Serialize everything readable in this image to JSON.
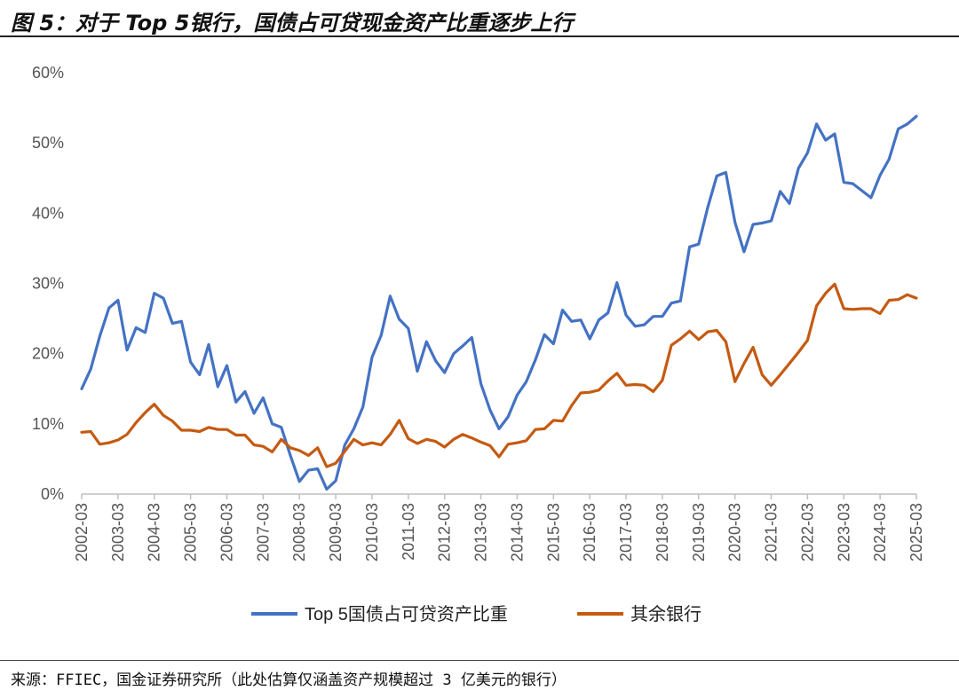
{
  "title": "图 5：对于 Top 5银行，国债占可贷现金资产比重逐步上行",
  "source": "来源：FFIEC，国金证券研究所（此处估算仅涵盖资产规模超过 3 亿美元的银行）",
  "chart_data": {
    "type": "line",
    "title": "",
    "xlabel": "",
    "ylabel": "",
    "ylim": [
      0,
      60
    ],
    "yticks": [
      "0%",
      "10%",
      "20%",
      "30%",
      "40%",
      "50%",
      "60%"
    ],
    "x_start": "2002-03",
    "xticks": [
      "2002-03",
      "2003-03",
      "2004-03",
      "2005-03",
      "2006-03",
      "2007-03",
      "2008-03",
      "2009-03",
      "2010-03",
      "2011-03",
      "2012-03",
      "2013-03",
      "2014-03",
      "2015-03",
      "2016-03",
      "2017-03",
      "2018-03",
      "2019-03",
      "2020-03",
      "2021-03",
      "2022-03",
      "2023-03",
      "2024-03",
      "2025-03"
    ],
    "legend_position": "bottom",
    "grid": false,
    "series": [
      {
        "name": "Top 5国债占可贷资产比重",
        "color": "#4472C4",
        "values": [
          15,
          17.8,
          22.5,
          26.5,
          27.6,
          20.5,
          23.7,
          23,
          28.6,
          27.9,
          24.3,
          24.6,
          18.8,
          17,
          21.3,
          15.3,
          18.3,
          13.1,
          14.6,
          11.5,
          13.7,
          10,
          9.5,
          5.5,
          1.8,
          3.4,
          3.6,
          0.7,
          1.9,
          7,
          9.3,
          12.4,
          19.5,
          22.6,
          28.2,
          24.9,
          23.6,
          17.5,
          21.7,
          19,
          17.3,
          20,
          21.1,
          22.3,
          15.7,
          12,
          9.3,
          11,
          14.1,
          16,
          19.1,
          22.7,
          21.4,
          26.2,
          24.6,
          24.8,
          22.1,
          24.8,
          25.8,
          30.1,
          25.5,
          23.9,
          24.1,
          25.3,
          25.3,
          27.2,
          27.5,
          35.2,
          35.6,
          40.8,
          45.3,
          45.8,
          38.7,
          34.5,
          38.4,
          38.6,
          38.9,
          43.1,
          41.4,
          46.4,
          48.6,
          52.7,
          50.4,
          51.3,
          44.4,
          44.2,
          43.2,
          42.2,
          45.4,
          47.7,
          52,
          52.7,
          53.8
        ]
      },
      {
        "name": "其余银行",
        "color": "#C55A11",
        "values": [
          8.8,
          8.9,
          7.1,
          7.3,
          7.7,
          8.5,
          10.2,
          11.6,
          12.8,
          11.2,
          10.4,
          9.1,
          9.1,
          8.9,
          9.5,
          9.2,
          9.2,
          8.4,
          8.4,
          7,
          6.8,
          6,
          7.8,
          6.6,
          6.2,
          5.5,
          6.6,
          3.9,
          4.4,
          6.1,
          7.8,
          7,
          7.3,
          7,
          8.5,
          10.5,
          7.9,
          7.2,
          7.8,
          7.5,
          6.7,
          7.8,
          8.5,
          8,
          7.4,
          6.9,
          5.3,
          7.1,
          7.3,
          7.6,
          9.2,
          9.3,
          10.5,
          10.4,
          12.6,
          14.4,
          14.5,
          14.8,
          16.1,
          17.2,
          15.5,
          15.6,
          15.5,
          14.6,
          16.2,
          21.2,
          22.1,
          23.2,
          22,
          23.1,
          23.3,
          21.7,
          16,
          18.6,
          20.9,
          17,
          15.5,
          17,
          18.6,
          20.2,
          21.9,
          26.8,
          28.6,
          29.9,
          26.4,
          26.3,
          26.4,
          26.4,
          25.7,
          27.6,
          27.7,
          28.4,
          27.9
        ]
      }
    ]
  }
}
